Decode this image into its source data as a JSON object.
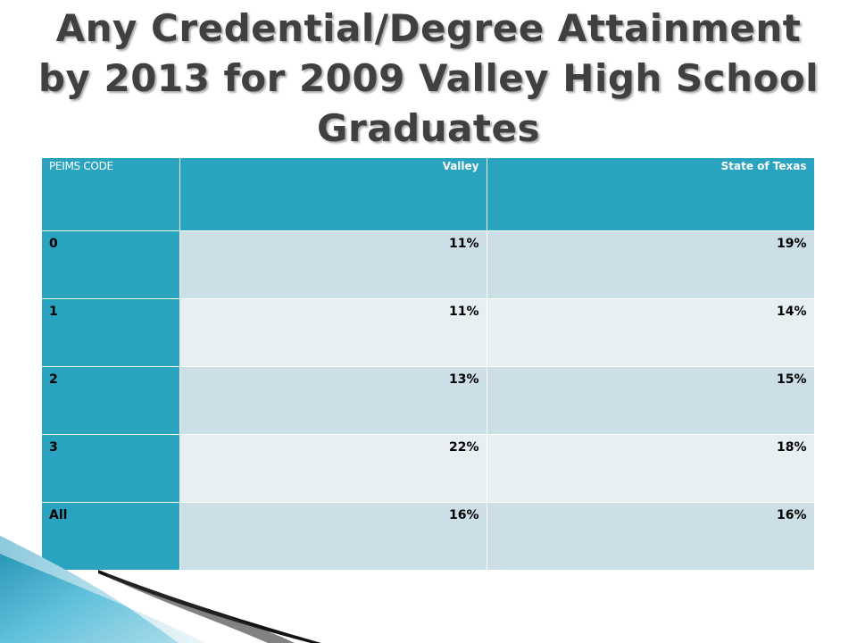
{
  "title": "Any Credential/Degree Attainment by 2013 for 2009 Valley High School Graduates",
  "table": {
    "headers": [
      "PEIMS CODE",
      "Valley",
      "State of Texas"
    ],
    "rows": [
      {
        "code": "0",
        "valley": "11%",
        "texas": "19%"
      },
      {
        "code": "1",
        "valley": "11%",
        "texas": "14%"
      },
      {
        "code": "2",
        "valley": "13%",
        "texas": "15%"
      },
      {
        "code": "3",
        "valley": "22%",
        "texas": "18%"
      },
      {
        "code": "All",
        "valley": "16%",
        "texas": "16%"
      }
    ]
  },
  "colors": {
    "header_bg": "#2aa3c1",
    "row_dark": "#cddfe6",
    "row_light": "#e7eff3",
    "title_text": "#404040"
  }
}
